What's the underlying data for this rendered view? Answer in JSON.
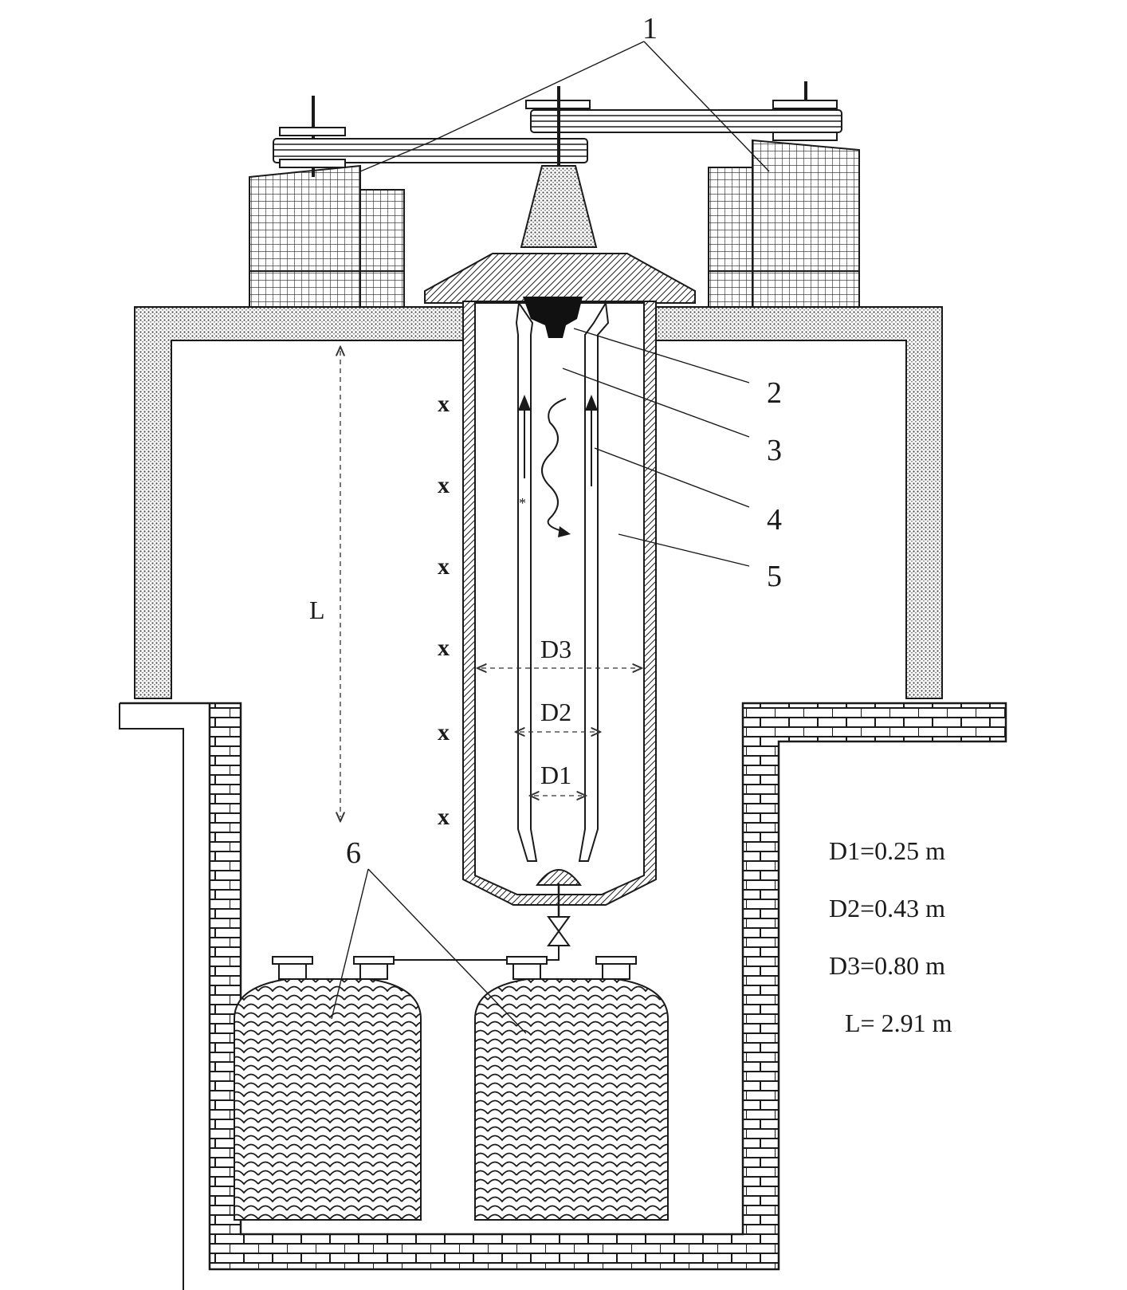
{
  "callouts": {
    "n1": "1",
    "n2": "2",
    "n3": "3",
    "n4": "4",
    "n5": "5",
    "n6": "6"
  },
  "dimensions": {
    "d3": "D3",
    "d2": "D2",
    "d1": "D1",
    "l": "L"
  },
  "markers": [
    "x",
    "x",
    "x",
    "x",
    "x",
    "x"
  ],
  "specs": {
    "d1": "D1=0.25 m",
    "d2": "D2=0.43 m",
    "d3": "D3=0.80 m",
    "l": "L= 2.91 m"
  }
}
